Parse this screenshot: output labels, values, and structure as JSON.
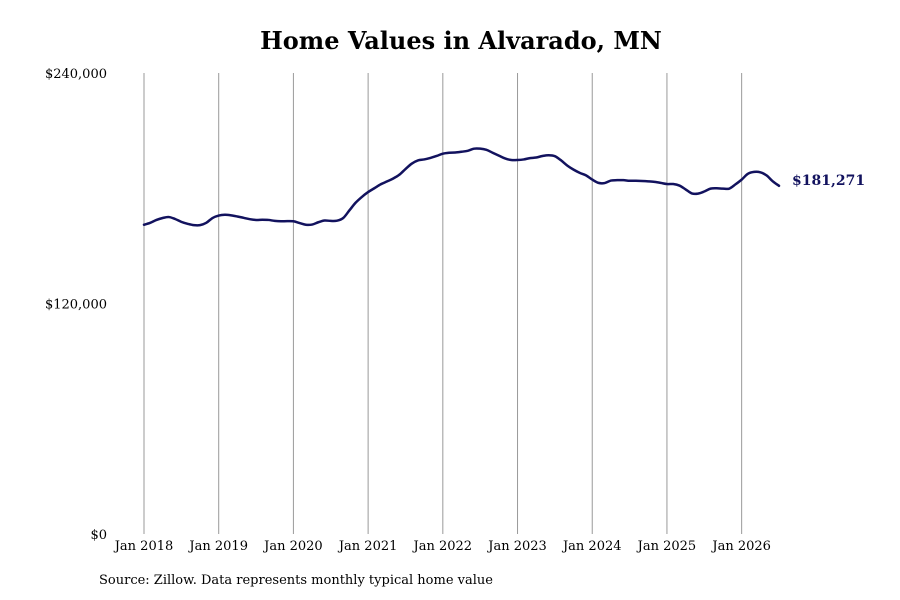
{
  "title": "Home Values in Alvarado, MN",
  "source": "Source: Zillow. Data represents monthly typical home value",
  "colors": {
    "line": "#12125e",
    "grid": "#9a9a9a",
    "end_label": "#12125e"
  },
  "chart_data": {
    "type": "line",
    "title": "Home Values in Alvarado, MN",
    "xlabel": "",
    "ylabel": "",
    "ylim": [
      0,
      240000
    ],
    "y_ticks": [
      0,
      120000,
      240000
    ],
    "y_tick_labels": [
      "$0",
      "$120,000",
      "$240,000"
    ],
    "x_range": [
      "2018-01",
      "2026-07"
    ],
    "x_ticks": [
      "2018-01",
      "2019-01",
      "2020-01",
      "2021-01",
      "2022-01",
      "2023-01",
      "2024-01",
      "2025-01",
      "2026-01"
    ],
    "x_tick_labels": [
      "Jan 2018",
      "Jan 2019",
      "Jan 2020",
      "Jan 2021",
      "Jan 2022",
      "Jan 2023",
      "Jan 2024",
      "Jan 2025",
      "Jan 2026"
    ],
    "grid": "vertical lines at each January",
    "end_label": "$181,271",
    "series": [
      {
        "x": [
          "2018-01",
          "2018-02",
          "2018-03",
          "2018-04",
          "2018-05",
          "2018-06",
          "2018-07",
          "2018-08",
          "2018-09",
          "2018-10",
          "2018-11",
          "2018-12",
          "2019-01",
          "2019-02",
          "2019-03",
          "2019-04",
          "2019-05",
          "2019-06",
          "2019-07",
          "2019-08",
          "2019-09",
          "2019-10",
          "2019-11",
          "2019-12",
          "2020-01",
          "2020-02",
          "2020-03",
          "2020-04",
          "2020-05",
          "2020-06",
          "2020-07",
          "2020-08",
          "2020-09",
          "2020-10",
          "2020-11",
          "2020-12",
          "2021-01",
          "2021-02",
          "2021-03",
          "2021-04",
          "2021-05",
          "2021-06",
          "2021-07",
          "2021-08",
          "2021-09",
          "2021-10",
          "2021-11",
          "2021-12",
          "2022-01",
          "2022-02",
          "2022-03",
          "2022-04",
          "2022-05",
          "2022-06",
          "2022-07",
          "2022-08",
          "2022-09",
          "2022-10",
          "2022-11",
          "2022-12",
          "2023-01",
          "2023-02",
          "2023-03",
          "2023-04",
          "2023-05",
          "2023-06",
          "2023-07",
          "2023-08",
          "2023-09",
          "2023-10",
          "2023-11",
          "2023-12",
          "2024-01",
          "2024-02",
          "2024-03",
          "2024-04",
          "2024-05",
          "2024-06",
          "2024-07",
          "2024-08",
          "2024-09",
          "2024-10",
          "2024-11",
          "2024-12",
          "2025-01",
          "2025-02",
          "2025-03",
          "2025-04",
          "2025-05",
          "2025-06",
          "2025-07",
          "2025-08",
          "2025-09",
          "2025-10",
          "2025-11",
          "2025-12",
          "2026-01",
          "2026-02",
          "2026-03",
          "2026-04",
          "2026-05",
          "2026-06",
          "2026-07"
        ],
        "values": [
          161000,
          162000,
          163500,
          164500,
          165000,
          164000,
          162500,
          161500,
          160800,
          160800,
          162000,
          164500,
          165800,
          166200,
          165900,
          165300,
          164600,
          163900,
          163500,
          163600,
          163500,
          163000,
          162800,
          162900,
          162800,
          161900,
          161000,
          161100,
          162300,
          163200,
          163000,
          163100,
          164500,
          168500,
          172500,
          175500,
          178000,
          180000,
          182000,
          183500,
          185000,
          187000,
          190000,
          192800,
          194500,
          195000,
          195800,
          196800,
          198000,
          198500,
          198600,
          199000,
          199500,
          200600,
          200600,
          200000,
          198500,
          197000,
          195500,
          194700,
          194700,
          195000,
          195700,
          196000,
          196800,
          197200,
          196700,
          194500,
          191800,
          189700,
          188000,
          186700,
          184500,
          182800,
          182700,
          184000,
          184200,
          184200,
          183900,
          183900,
          183800,
          183600,
          183300,
          182800,
          182200,
          182200,
          181400,
          179400,
          177300,
          177200,
          178300,
          179800,
          180000,
          179800,
          179800,
          182000,
          184500,
          187500,
          188500,
          188300,
          186700,
          183600,
          181271
        ]
      }
    ]
  }
}
